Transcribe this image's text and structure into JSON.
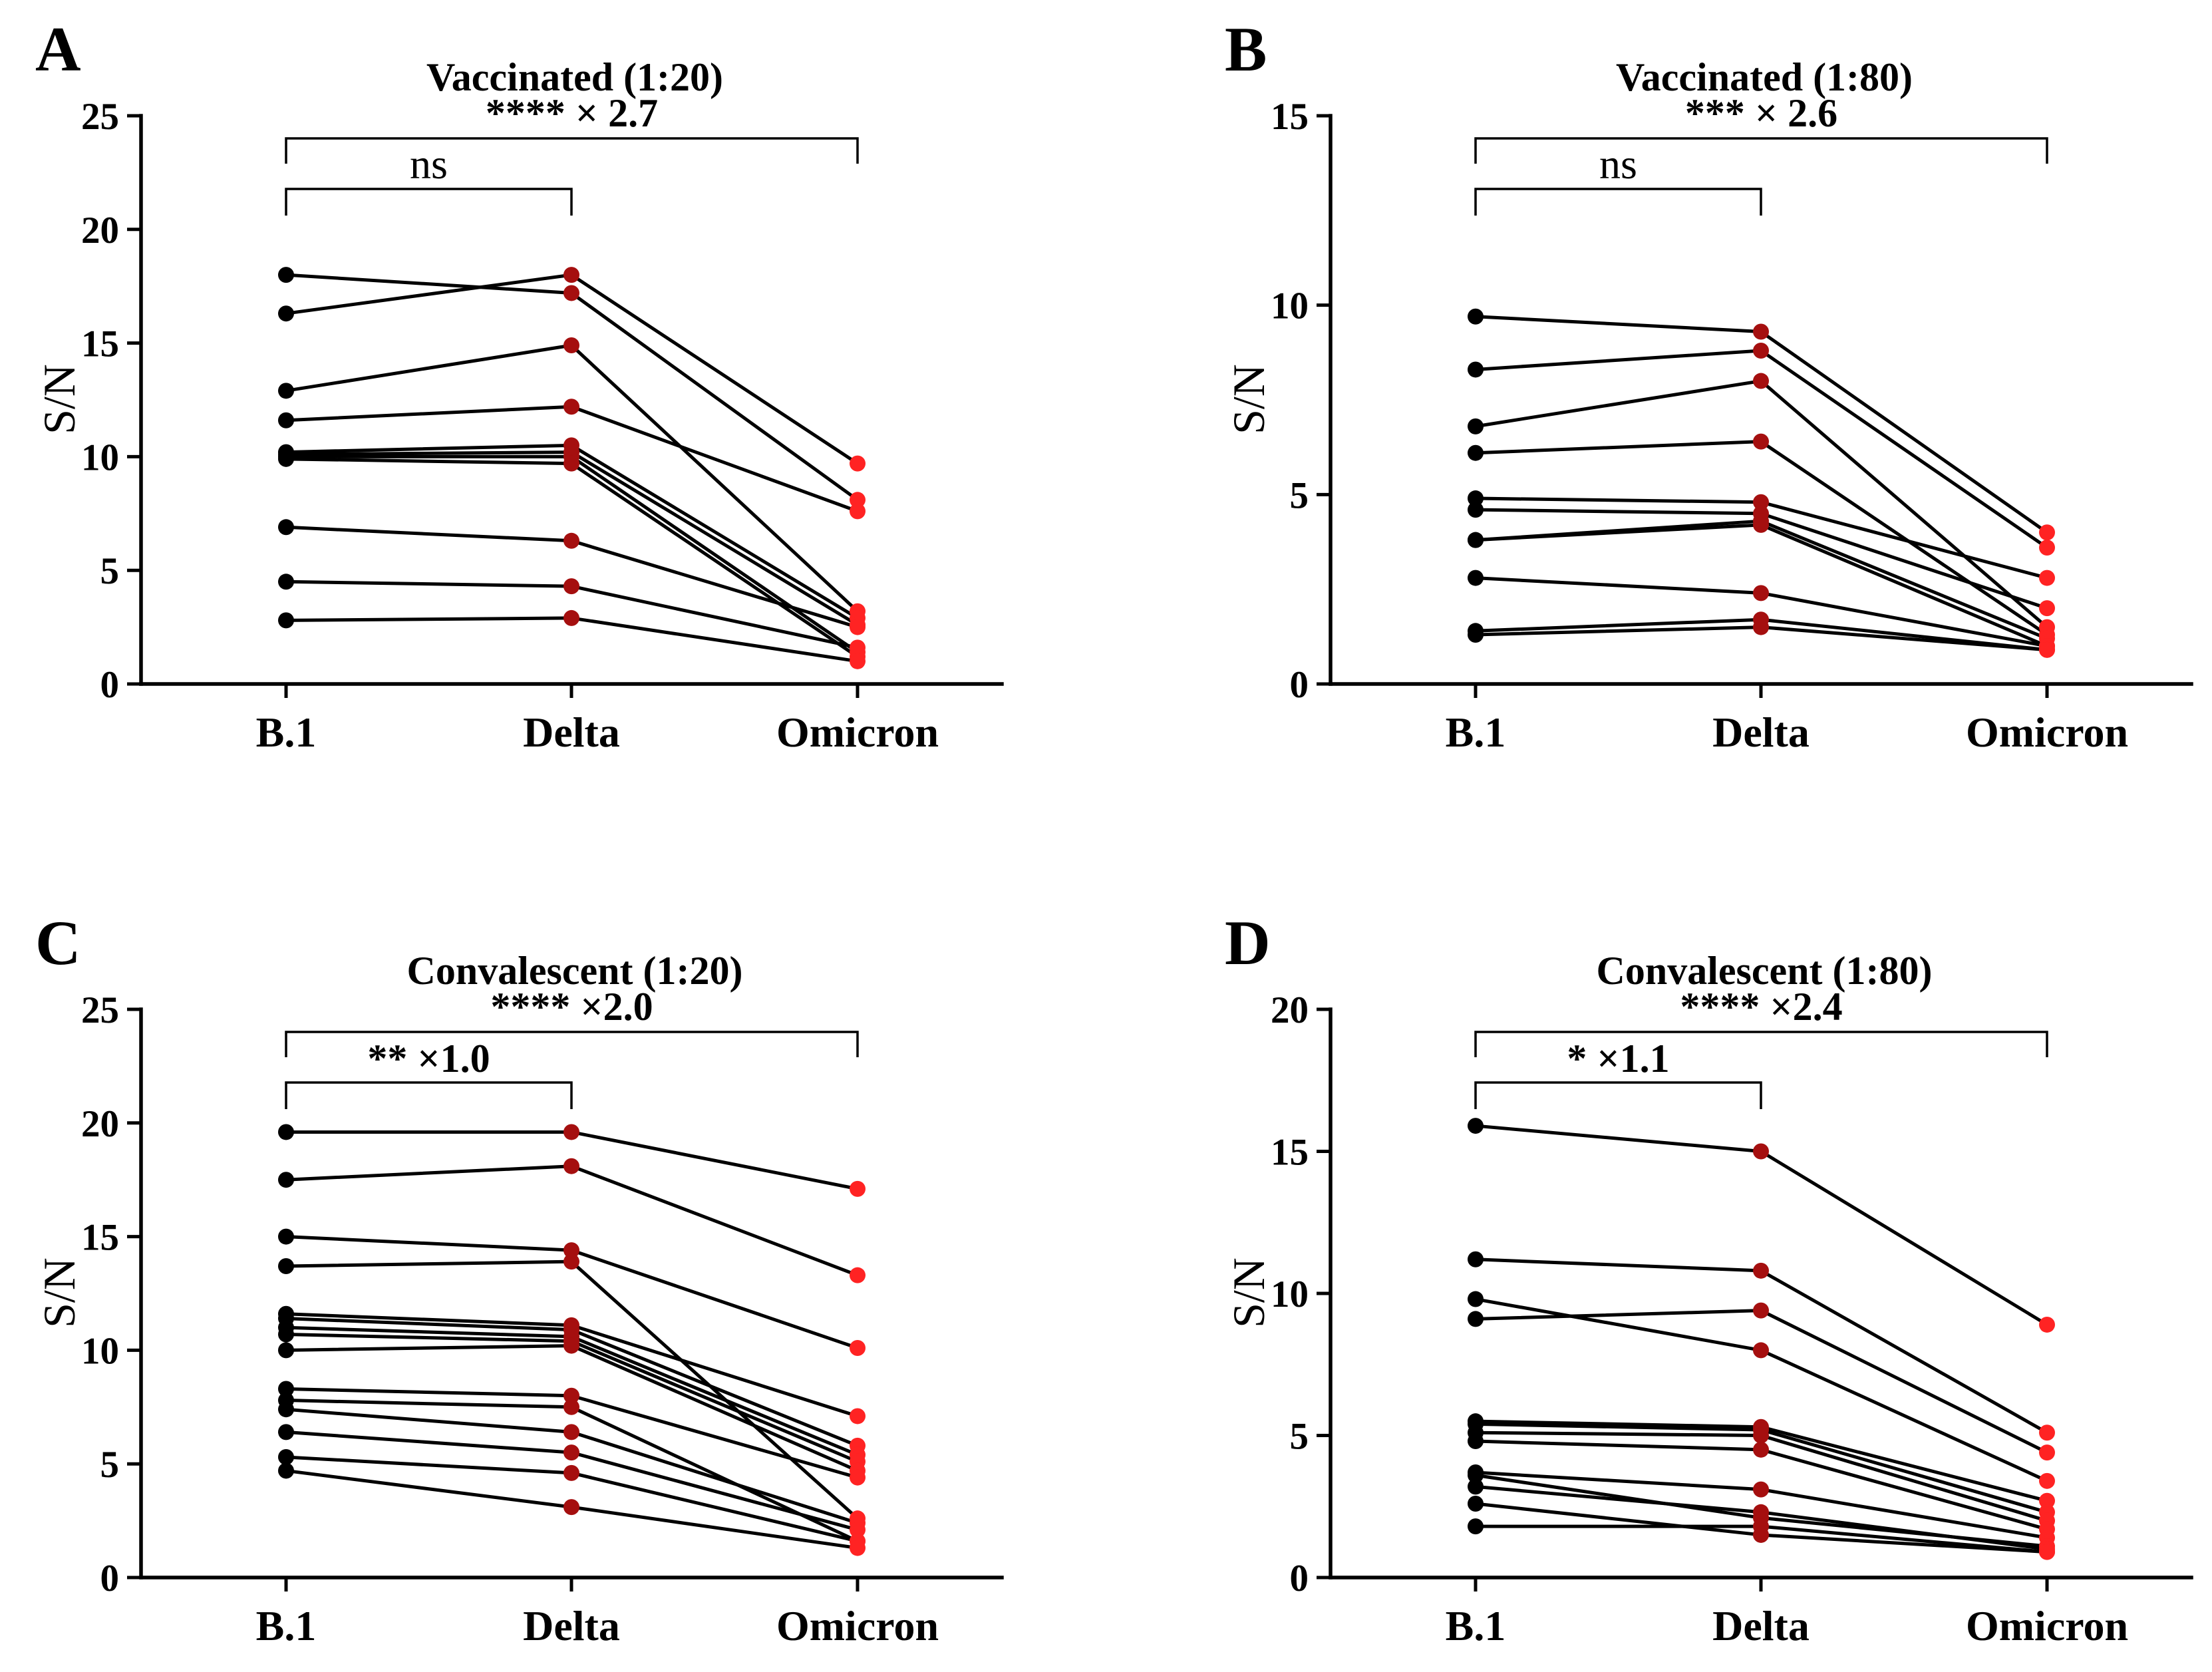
{
  "point_colors": [
    "#000000",
    "#a50f0f",
    "#ff2323"
  ],
  "line_color": "#000000",
  "chart_data": [
    {
      "panel": "A",
      "type": "line",
      "title": "Vaccinated (1:20)",
      "xlabel": "",
      "ylabel": "S/N",
      "categories": [
        "B.1",
        "Delta",
        "Omicron"
      ],
      "ylim": [
        0,
        25
      ],
      "yticks": [
        0,
        5,
        10,
        15,
        20,
        25
      ],
      "grid": false,
      "comparisons": [
        {
          "span": [
            0,
            2
          ],
          "label": "**** × 2.7"
        },
        {
          "span": [
            0,
            1
          ],
          "label": "ns"
        }
      ],
      "series": [
        {
          "values": [
            18.0,
            17.2,
            8.1
          ]
        },
        {
          "values": [
            16.3,
            18.0,
            9.7
          ]
        },
        {
          "values": [
            12.9,
            14.9,
            3.2
          ]
        },
        {
          "values": [
            11.6,
            12.2,
            7.6
          ]
        },
        {
          "values": [
            10.2,
            10.5,
            2.9
          ]
        },
        {
          "values": [
            10.1,
            10.2,
            2.6
          ]
        },
        {
          "values": [
            10.0,
            10.0,
            1.4
          ]
        },
        {
          "values": [
            9.9,
            9.7,
            1.2
          ]
        },
        {
          "values": [
            6.9,
            6.3,
            2.5
          ]
        },
        {
          "values": [
            4.5,
            4.3,
            1.6
          ]
        },
        {
          "values": [
            2.8,
            2.9,
            1.0
          ]
        }
      ]
    },
    {
      "panel": "B",
      "type": "line",
      "title": "Vaccinated (1:80)",
      "xlabel": "",
      "ylabel": "S/N",
      "categories": [
        "B.1",
        "Delta",
        "Omicron"
      ],
      "ylim": [
        0,
        15
      ],
      "yticks": [
        0,
        5,
        10,
        15
      ],
      "grid": false,
      "comparisons": [
        {
          "span": [
            0,
            2
          ],
          "label": "*** × 2.6"
        },
        {
          "span": [
            0,
            1
          ],
          "label": "ns"
        }
      ],
      "series": [
        {
          "values": [
            9.7,
            9.3,
            4.0
          ]
        },
        {
          "values": [
            8.3,
            8.8,
            3.6
          ]
        },
        {
          "values": [
            6.8,
            8.0,
            1.5
          ]
        },
        {
          "values": [
            6.1,
            6.4,
            1.3
          ]
        },
        {
          "values": [
            4.9,
            4.8,
            2.8
          ]
        },
        {
          "values": [
            4.6,
            4.5,
            2.0
          ]
        },
        {
          "values": [
            3.8,
            4.3,
            1.2
          ]
        },
        {
          "values": [
            3.8,
            4.2,
            1.0
          ]
        },
        {
          "values": [
            2.8,
            2.4,
            1.0
          ]
        },
        {
          "values": [
            1.4,
            1.7,
            0.9
          ]
        },
        {
          "values": [
            1.3,
            1.5,
            0.9
          ]
        }
      ]
    },
    {
      "panel": "C",
      "type": "line",
      "title": "Convalescent (1:20)",
      "xlabel": "",
      "ylabel": "S/N",
      "categories": [
        "B.1",
        "Delta",
        "Omicron"
      ],
      "ylim": [
        0,
        25
      ],
      "yticks": [
        0,
        5,
        10,
        15,
        20,
        25
      ],
      "grid": false,
      "comparisons": [
        {
          "span": [
            0,
            2
          ],
          "label": "**** ×2.0"
        },
        {
          "span": [
            0,
            1
          ],
          "label": "** ×1.0"
        }
      ],
      "series": [
        {
          "values": [
            19.6,
            19.6,
            17.1
          ]
        },
        {
          "values": [
            17.5,
            18.1,
            13.3
          ]
        },
        {
          "values": [
            15.0,
            14.4,
            10.1
          ]
        },
        {
          "values": [
            13.7,
            13.9,
            2.6
          ]
        },
        {
          "values": [
            11.6,
            11.1,
            7.1
          ]
        },
        {
          "values": [
            11.4,
            10.9,
            5.8
          ]
        },
        {
          "values": [
            11.0,
            10.6,
            5.4
          ]
        },
        {
          "values": [
            10.7,
            10.4,
            5.1
          ]
        },
        {
          "values": [
            10.0,
            10.2,
            4.7
          ]
        },
        {
          "values": [
            8.3,
            8.0,
            4.4
          ]
        },
        {
          "values": [
            7.8,
            7.5,
            1.6
          ]
        },
        {
          "values": [
            7.4,
            6.4,
            2.4
          ]
        },
        {
          "values": [
            6.4,
            5.5,
            2.1
          ]
        },
        {
          "values": [
            5.3,
            4.6,
            1.6
          ]
        },
        {
          "values": [
            4.7,
            3.1,
            1.3
          ]
        }
      ]
    },
    {
      "panel": "D",
      "type": "line",
      "title": "Convalescent (1:80)",
      "xlabel": "",
      "ylabel": "S/N",
      "categories": [
        "B.1",
        "Delta",
        "Omicron"
      ],
      "ylim": [
        0,
        20
      ],
      "yticks": [
        0,
        5,
        10,
        15,
        20
      ],
      "grid": false,
      "comparisons": [
        {
          "span": [
            0,
            2
          ],
          "label": "**** ×2.4"
        },
        {
          "span": [
            0,
            1
          ],
          "label": "* ×1.1"
        }
      ],
      "series": [
        {
          "values": [
            15.9,
            15.0,
            8.9
          ]
        },
        {
          "values": [
            11.2,
            10.8,
            5.1
          ]
        },
        {
          "values": [
            9.1,
            9.4,
            4.4
          ]
        },
        {
          "values": [
            9.8,
            8.0,
            3.4
          ]
        },
        {
          "values": [
            5.5,
            5.3,
            2.7
          ]
        },
        {
          "values": [
            5.4,
            5.2,
            2.3
          ]
        },
        {
          "values": [
            5.1,
            5.0,
            2.0
          ]
        },
        {
          "values": [
            4.8,
            4.5,
            1.7
          ]
        },
        {
          "values": [
            3.7,
            3.1,
            1.4
          ]
        },
        {
          "values": [
            3.6,
            2.1,
            1.1
          ]
        },
        {
          "values": [
            3.2,
            2.3,
            1.0
          ]
        },
        {
          "values": [
            2.6,
            1.5,
            0.9
          ]
        },
        {
          "values": [
            1.8,
            1.8,
            0.9
          ]
        }
      ]
    }
  ]
}
